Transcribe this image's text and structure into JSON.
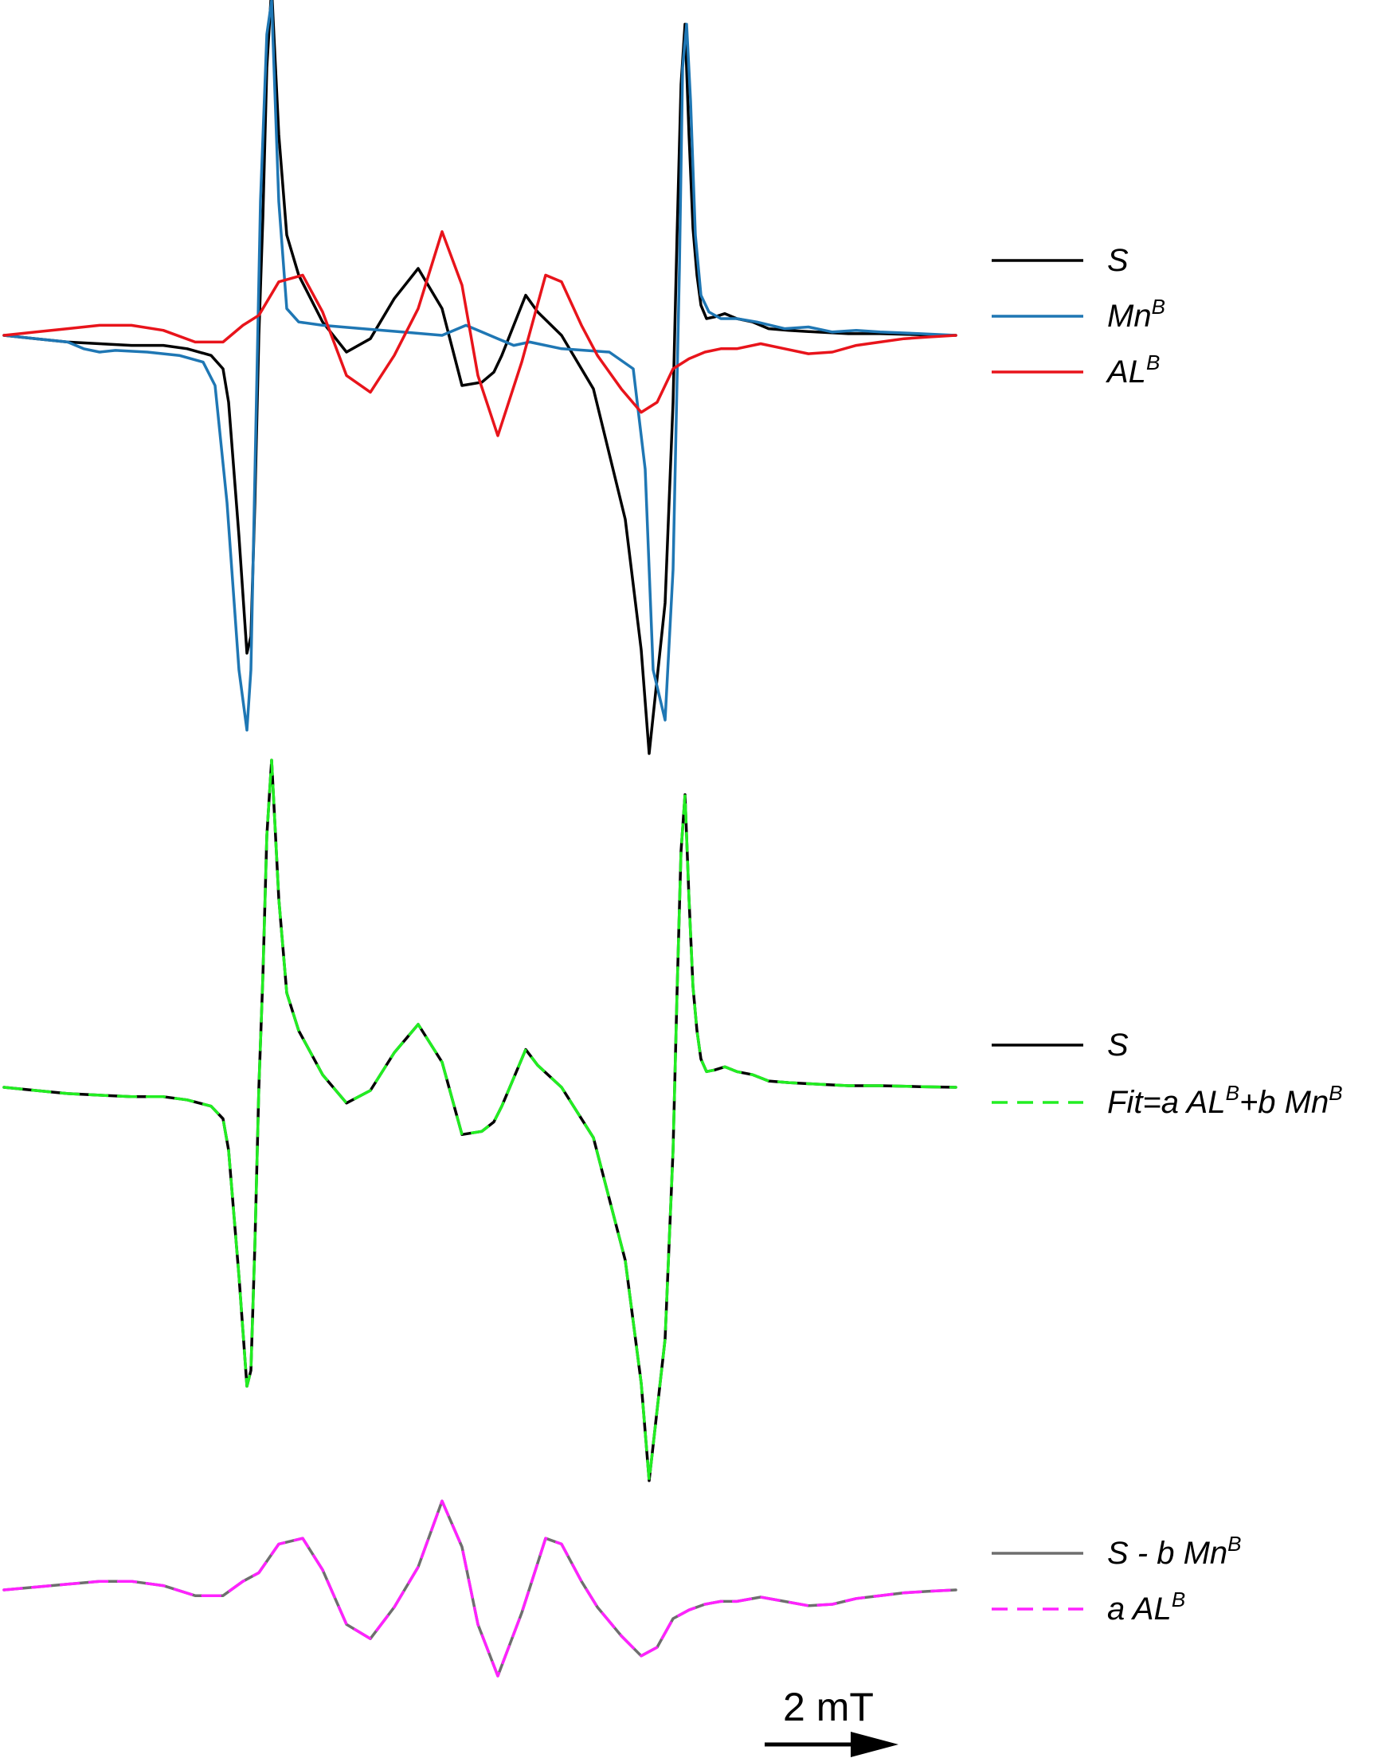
{
  "chart_data": [
    {
      "type": "line",
      "panel": "top",
      "series": [
        {
          "name_parts": [
            {
              "t": "S"
            }
          ],
          "color": "#000000",
          "dash": false,
          "x": [
            0,
            40,
            80,
            120,
            160,
            200,
            230,
            260,
            275,
            282,
            295,
            305,
            310,
            315,
            320,
            325,
            330,
            336,
            345,
            355,
            370,
            400,
            430,
            460,
            490,
            520,
            550,
            575,
            600,
            615,
            625,
            640,
            655,
            670,
            700,
            740,
            780,
            800,
            810,
            830,
            840,
            845,
            850,
            855,
            860,
            865,
            870,
            875,
            882,
            892,
            905,
            920,
            940,
            960,
            985,
            1020,
            1060,
            1100,
            1150,
            1195
          ],
          "y": [
            0,
            -0.01,
            -0.02,
            -0.025,
            -0.03,
            -0.03,
            -0.04,
            -0.06,
            -0.1,
            -0.2,
            -0.6,
            -0.95,
            -0.9,
            -0.5,
            0,
            0.35,
            0.8,
            1.04,
            0.6,
            0.3,
            0.18,
            0.04,
            -0.05,
            -0.01,
            0.11,
            0.2,
            0.08,
            -0.15,
            -0.14,
            -0.11,
            -0.06,
            0.03,
            0.12,
            0.07,
            0.0,
            -0.16,
            -0.55,
            -0.94,
            -1.25,
            -0.8,
            -0.2,
            0.3,
            0.75,
            0.93,
            0.6,
            0.32,
            0.18,
            0.09,
            0.05,
            0.055,
            0.065,
            0.05,
            0.04,
            0.02,
            0.015,
            0.01,
            0.005,
            0.005,
            0.002,
            0
          ]
        },
        {
          "name_parts": [
            {
              "t": "Mn"
            },
            {
              "t": "B",
              "sup": true
            }
          ],
          "color": "#1f77b4",
          "dash": false,
          "x": [
            0,
            40,
            80,
            100,
            120,
            140,
            180,
            220,
            250,
            265,
            280,
            295,
            305,
            310,
            316,
            322,
            330,
            336,
            345,
            355,
            370,
            400,
            450,
            500,
            550,
            580,
            600,
            620,
            640,
            660,
            700,
            760,
            790,
            805,
            815,
            830,
            840,
            848,
            852,
            857,
            862,
            868,
            875,
            885,
            900,
            920,
            945,
            980,
            1010,
            1040,
            1070,
            1100,
            1150,
            1195
          ],
          "y": [
            0,
            -0.01,
            -0.02,
            -0.04,
            -0.05,
            -0.045,
            -0.05,
            -0.06,
            -0.08,
            -0.15,
            -0.5,
            -1.0,
            -1.18,
            -1.0,
            -0.3,
            0.4,
            0.9,
            1.0,
            0.4,
            0.08,
            0.04,
            0.03,
            0.02,
            0.01,
            0.0,
            0.03,
            0.01,
            -0.01,
            -0.03,
            -0.02,
            -0.04,
            -0.05,
            -0.1,
            -0.4,
            -1.0,
            -1.15,
            -0.7,
            0.2,
            0.8,
            0.93,
            0.7,
            0.3,
            0.12,
            0.07,
            0.05,
            0.05,
            0.04,
            0.02,
            0.025,
            0.01,
            0.015,
            0.01,
            0.005,
            0
          ]
        },
        {
          "name_parts": [
            {
              "t": "AL"
            },
            {
              "t": "B",
              "sup": true
            }
          ],
          "color": "#e8141b",
          "dash": false,
          "x": [
            0,
            40,
            80,
            120,
            160,
            200,
            240,
            275,
            300,
            320,
            345,
            375,
            400,
            430,
            460,
            490,
            520,
            550,
            575,
            595,
            620,
            650,
            680,
            700,
            725,
            745,
            775,
            800,
            820,
            840,
            860,
            880,
            900,
            920,
            950,
            980,
            1010,
            1040,
            1070,
            1100,
            1130,
            1160,
            1195
          ],
          "y": [
            0,
            0.01,
            0.02,
            0.03,
            0.03,
            0.015,
            -0.02,
            -0.02,
            0.03,
            0.06,
            0.16,
            0.18,
            0.07,
            -0.12,
            -0.17,
            -0.06,
            0.08,
            0.31,
            0.15,
            -0.12,
            -0.3,
            -0.08,
            0.18,
            0.16,
            0.03,
            -0.06,
            -0.16,
            -0.23,
            -0.2,
            -0.1,
            -0.07,
            -0.05,
            -0.04,
            -0.04,
            -0.025,
            -0.04,
            -0.055,
            -0.05,
            -0.03,
            -0.02,
            -0.01,
            -0.005,
            0
          ]
        }
      ]
    },
    {
      "type": "line",
      "panel": "middle",
      "series": [
        {
          "name_parts": [
            {
              "t": "S"
            }
          ],
          "color": "#000000",
          "dash": false,
          "x": [
            0,
            40,
            80,
            120,
            160,
            200,
            230,
            260,
            275,
            282,
            295,
            305,
            310,
            315,
            320,
            325,
            330,
            336,
            345,
            355,
            370,
            400,
            430,
            460,
            490,
            520,
            550,
            575,
            600,
            615,
            625,
            640,
            655,
            670,
            700,
            740,
            780,
            800,
            810,
            830,
            840,
            845,
            850,
            855,
            860,
            865,
            870,
            875,
            882,
            892,
            905,
            920,
            940,
            960,
            985,
            1020,
            1060,
            1100,
            1150,
            1195
          ],
          "y": [
            0,
            -0.01,
            -0.02,
            -0.025,
            -0.03,
            -0.03,
            -0.04,
            -0.06,
            -0.1,
            -0.2,
            -0.6,
            -0.95,
            -0.9,
            -0.5,
            0,
            0.35,
            0.8,
            1.04,
            0.6,
            0.3,
            0.18,
            0.04,
            -0.05,
            -0.01,
            0.11,
            0.2,
            0.08,
            -0.15,
            -0.14,
            -0.11,
            -0.06,
            0.03,
            0.12,
            0.07,
            0.0,
            -0.16,
            -0.55,
            -0.94,
            -1.25,
            -0.8,
            -0.2,
            0.3,
            0.75,
            0.93,
            0.6,
            0.32,
            0.18,
            0.09,
            0.05,
            0.055,
            0.065,
            0.05,
            0.04,
            0.02,
            0.015,
            0.01,
            0.005,
            0.005,
            0.002,
            0
          ]
        },
        {
          "name_parts": [
            {
              "t": "Fit=a AL"
            },
            {
              "t": "B",
              "sup": true
            },
            {
              "t": "+b Mn"
            },
            {
              "t": "B",
              "sup": true
            }
          ],
          "color": "#22ee22",
          "dash": true,
          "x": [
            0,
            40,
            80,
            120,
            160,
            200,
            230,
            260,
            275,
            282,
            295,
            305,
            310,
            315,
            320,
            325,
            330,
            336,
            345,
            355,
            370,
            400,
            430,
            460,
            490,
            520,
            550,
            575,
            600,
            615,
            625,
            640,
            655,
            670,
            700,
            740,
            780,
            800,
            810,
            830,
            840,
            845,
            850,
            855,
            860,
            865,
            870,
            875,
            882,
            892,
            905,
            920,
            940,
            960,
            985,
            1020,
            1060,
            1100,
            1150,
            1195
          ],
          "y": [
            0,
            -0.01,
            -0.02,
            -0.025,
            -0.03,
            -0.03,
            -0.04,
            -0.06,
            -0.1,
            -0.2,
            -0.6,
            -0.95,
            -0.9,
            -0.5,
            0,
            0.35,
            0.8,
            1.04,
            0.6,
            0.3,
            0.18,
            0.04,
            -0.05,
            -0.01,
            0.11,
            0.2,
            0.08,
            -0.15,
            -0.14,
            -0.11,
            -0.06,
            0.03,
            0.12,
            0.07,
            0.0,
            -0.16,
            -0.55,
            -0.94,
            -1.25,
            -0.8,
            -0.2,
            0.3,
            0.75,
            0.93,
            0.6,
            0.32,
            0.18,
            0.09,
            0.05,
            0.055,
            0.065,
            0.05,
            0.04,
            0.02,
            0.015,
            0.01,
            0.005,
            0.005,
            0.002,
            0
          ]
        }
      ]
    },
    {
      "type": "line",
      "panel": "bottom",
      "series": [
        {
          "name_parts": [
            {
              "t": "S - b Mn"
            },
            {
              "t": "B",
              "sup": true
            }
          ],
          "color": "#6e6e6e",
          "dash": false,
          "x": [
            0,
            40,
            80,
            120,
            160,
            200,
            240,
            275,
            300,
            320,
            345,
            375,
            400,
            430,
            460,
            490,
            520,
            550,
            575,
            595,
            620,
            650,
            680,
            700,
            725,
            745,
            775,
            800,
            820,
            840,
            860,
            880,
            900,
            920,
            950,
            980,
            1010,
            1040,
            1070,
            1100,
            1130,
            1160,
            1195
          ],
          "y": [
            0,
            0.01,
            0.02,
            0.03,
            0.03,
            0.015,
            -0.02,
            -0.02,
            0.03,
            0.06,
            0.16,
            0.18,
            0.07,
            -0.12,
            -0.17,
            -0.06,
            0.08,
            0.31,
            0.15,
            -0.12,
            -0.3,
            -0.08,
            0.18,
            0.16,
            0.03,
            -0.06,
            -0.16,
            -0.23,
            -0.2,
            -0.1,
            -0.07,
            -0.05,
            -0.04,
            -0.04,
            -0.025,
            -0.04,
            -0.055,
            -0.05,
            -0.03,
            -0.02,
            -0.01,
            -0.005,
            0
          ]
        },
        {
          "name_parts": [
            {
              "t": "a AL"
            },
            {
              "t": "B",
              "sup": true
            }
          ],
          "color": "#ff22ff",
          "dash": true,
          "x": [
            0,
            40,
            80,
            120,
            160,
            200,
            240,
            275,
            300,
            320,
            345,
            375,
            400,
            430,
            460,
            490,
            520,
            550,
            575,
            595,
            620,
            650,
            680,
            700,
            725,
            745,
            775,
            800,
            820,
            840,
            860,
            880,
            900,
            920,
            950,
            980,
            1010,
            1040,
            1070,
            1100,
            1130,
            1160,
            1195
          ],
          "y": [
            0,
            0.01,
            0.02,
            0.03,
            0.03,
            0.015,
            -0.02,
            -0.02,
            0.03,
            0.06,
            0.16,
            0.18,
            0.07,
            -0.12,
            -0.17,
            -0.06,
            0.08,
            0.31,
            0.15,
            -0.12,
            -0.3,
            -0.08,
            0.18,
            0.16,
            0.03,
            -0.06,
            -0.16,
            -0.23,
            -0.2,
            -0.1,
            -0.07,
            -0.05,
            -0.04,
            -0.04,
            -0.025,
            -0.04,
            -0.055,
            -0.05,
            -0.03,
            -0.02,
            -0.01,
            -0.005,
            0
          ]
        }
      ]
    }
  ],
  "scale_bar": {
    "label": "2 mT"
  }
}
